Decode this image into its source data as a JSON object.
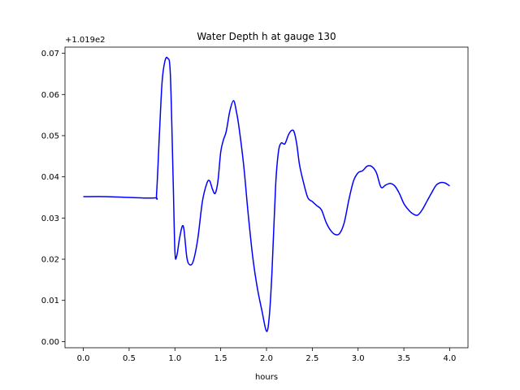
{
  "chart_data": {
    "type": "line",
    "title": "Water Depth h at gauge 130",
    "xlabel": "hours",
    "ylabel": "",
    "offset_label": "+1.019e2",
    "xlim": [
      -0.2,
      4.2
    ],
    "ylim": [
      -0.0015,
      0.0715
    ],
    "x_ticks": [
      0.0,
      0.5,
      1.0,
      1.5,
      2.0,
      2.5,
      3.0,
      3.5,
      4.0
    ],
    "x_tick_labels": [
      "0.0",
      "0.5",
      "1.0",
      "1.5",
      "2.0",
      "2.5",
      "3.0",
      "3.5",
      "4.0"
    ],
    "y_ticks": [
      0.0,
      0.01,
      0.02,
      0.03,
      0.04,
      0.05,
      0.06,
      0.07
    ],
    "y_tick_labels": [
      "0.00",
      "0.01",
      "0.02",
      "0.03",
      "0.04",
      "0.05",
      "0.06",
      "0.07"
    ],
    "grid": false,
    "series": [
      {
        "name": "",
        "color": "#0000ff",
        "x": [
          0.0,
          0.25,
          0.5,
          0.78,
          0.8,
          0.83,
          0.86,
          0.89,
          0.92,
          0.95,
          0.98,
          1.0,
          1.02,
          1.05,
          1.08,
          1.1,
          1.13,
          1.16,
          1.2,
          1.25,
          1.3,
          1.35,
          1.38,
          1.41,
          1.44,
          1.47,
          1.5,
          1.53,
          1.56,
          1.6,
          1.64,
          1.67,
          1.7,
          1.75,
          1.8,
          1.85,
          1.9,
          1.95,
          2.0,
          2.03,
          2.06,
          2.1,
          2.13,
          2.16,
          2.2,
          2.24,
          2.27,
          2.3,
          2.33,
          2.36,
          2.4,
          2.45,
          2.5,
          2.55,
          2.6,
          2.65,
          2.7,
          2.75,
          2.8,
          2.85,
          2.9,
          2.95,
          3.0,
          3.05,
          3.1,
          3.15,
          3.2,
          3.25,
          3.3,
          3.35,
          3.4,
          3.45,
          3.5,
          3.55,
          3.6,
          3.65,
          3.7,
          3.75,
          3.8,
          3.85,
          3.9,
          3.95,
          4.0
        ],
        "y": [
          0.0352,
          0.0352,
          0.035,
          0.0349,
          0.036,
          0.05,
          0.063,
          0.068,
          0.0688,
          0.065,
          0.04,
          0.022,
          0.0208,
          0.025,
          0.028,
          0.027,
          0.0205,
          0.0187,
          0.0195,
          0.025,
          0.034,
          0.0385,
          0.039,
          0.037,
          0.036,
          0.039,
          0.046,
          0.049,
          0.051,
          0.056,
          0.0585,
          0.056,
          0.052,
          0.043,
          0.031,
          0.0205,
          0.013,
          0.0075,
          0.0025,
          0.006,
          0.017,
          0.038,
          0.046,
          0.0482,
          0.048,
          0.0502,
          0.0512,
          0.051,
          0.048,
          0.043,
          0.039,
          0.035,
          0.034,
          0.033,
          0.032,
          0.029,
          0.027,
          0.026,
          0.0263,
          0.029,
          0.0345,
          0.039,
          0.041,
          0.0415,
          0.0426,
          0.0425,
          0.041,
          0.0375,
          0.038,
          0.0384,
          0.0378,
          0.036,
          0.0335,
          0.032,
          0.031,
          0.0307,
          0.032,
          0.034,
          0.036,
          0.0379,
          0.0386,
          0.0385,
          0.0378
        ]
      }
    ]
  }
}
